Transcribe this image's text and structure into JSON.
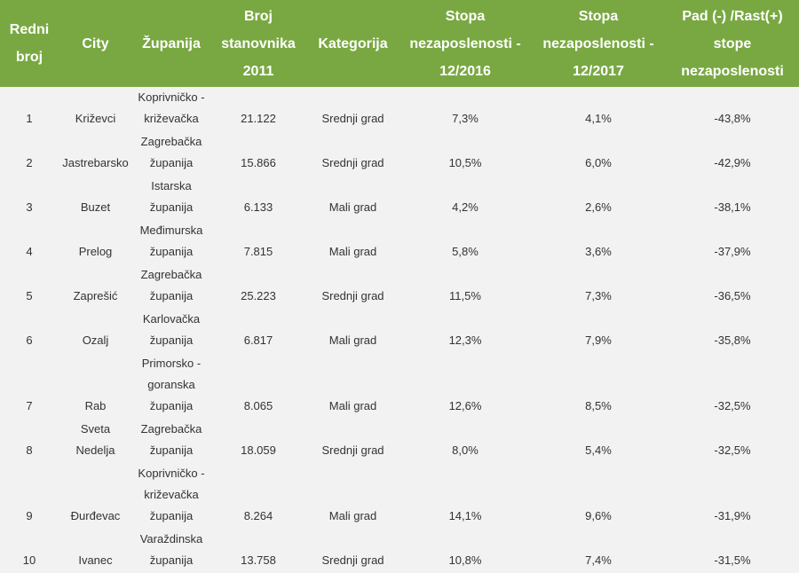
{
  "table": {
    "headers": [
      "Redni broj",
      "City",
      "Županija",
      "Broj stanovnika 2011",
      "Kategorija",
      "Stopa nezaposlenosti - 12/2016",
      "Stopa nezaposlenosti - 12/2017",
      "Pad (-) /Rast(+) stope nezaposlenosti"
    ],
    "rows": [
      [
        "1",
        "Križevci",
        "Koprivničko - križevačka",
        "21.122",
        "Srednji grad",
        "7,3%",
        "4,1%",
        "-43,8%"
      ],
      [
        "2",
        "Jastrebarsko",
        "Zagrebačka županija",
        "15.866",
        "Srednji grad",
        "10,5%",
        "6,0%",
        "-42,9%"
      ],
      [
        "3",
        "Buzet",
        "Istarska županija",
        "6.133",
        "Mali grad",
        "4,2%",
        "2,6%",
        "-38,1%"
      ],
      [
        "4",
        "Prelog",
        "Međimurska županija",
        "7.815",
        "Mali grad",
        "5,8%",
        "3,6%",
        "-37,9%"
      ],
      [
        "5",
        "Zaprešić",
        "Zagrebačka županija",
        "25.223",
        "Srednji grad",
        "11,5%",
        "7,3%",
        "-36,5%"
      ],
      [
        "6",
        "Ozalj",
        "Karlovačka županija",
        "6.817",
        "Mali grad",
        "12,3%",
        "7,9%",
        "-35,8%"
      ],
      [
        "7",
        "Rab",
        "Primorsko - goranska županija",
        "8.065",
        "Mali grad",
        "12,6%",
        "8,5%",
        "-32,5%"
      ],
      [
        "8",
        "Sveta Nedelja",
        "Zagrebačka županija",
        "18.059",
        "Srednji grad",
        "8,0%",
        "5,4%",
        "-32,5%"
      ],
      [
        "9",
        "Đurđevac",
        "Koprivničko - križevačka županija",
        "8.264",
        "Mali grad",
        "14,1%",
        "9,6%",
        "-31,9%"
      ],
      [
        "10",
        "Ivanec",
        "Varaždinska županija",
        "13.758",
        "Srednji grad",
        "10,8%",
        "7,4%",
        "-31,5%"
      ]
    ]
  }
}
